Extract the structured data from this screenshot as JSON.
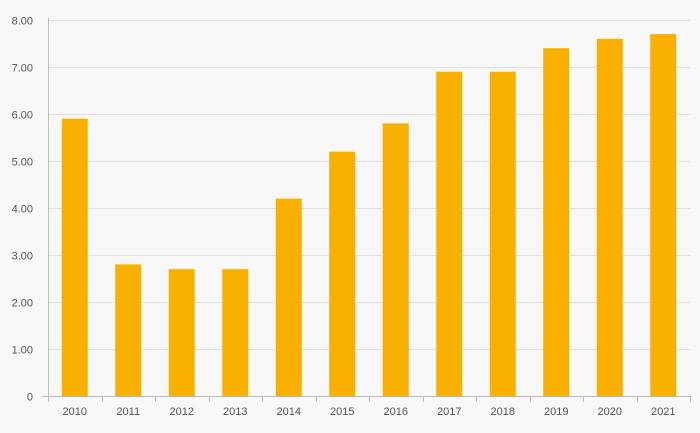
{
  "chart_data": {
    "type": "bar",
    "title": "",
    "xlabel": "",
    "ylabel": "",
    "categories": [
      "2010",
      "2011",
      "2012",
      "2013",
      "2014",
      "2015",
      "2016",
      "2017",
      "2018",
      "2019",
      "2020",
      "2021"
    ],
    "values": [
      5.9,
      2.8,
      2.7,
      2.7,
      4.2,
      5.2,
      5.8,
      6.9,
      6.9,
      7.4,
      7.6,
      7.7
    ],
    "ylim": [
      0,
      8
    ],
    "yticks": [
      0,
      1,
      2,
      3,
      4,
      5,
      6,
      7,
      8
    ],
    "ytick_labels": [
      "0",
      "1.00",
      "2.00",
      "3.00",
      "4.00",
      "5.00",
      "6.00",
      "7.00",
      "8.00"
    ],
    "grid": true,
    "legend": "none",
    "bar_color": "#F9B000",
    "background_color": "#F8F8F8"
  }
}
